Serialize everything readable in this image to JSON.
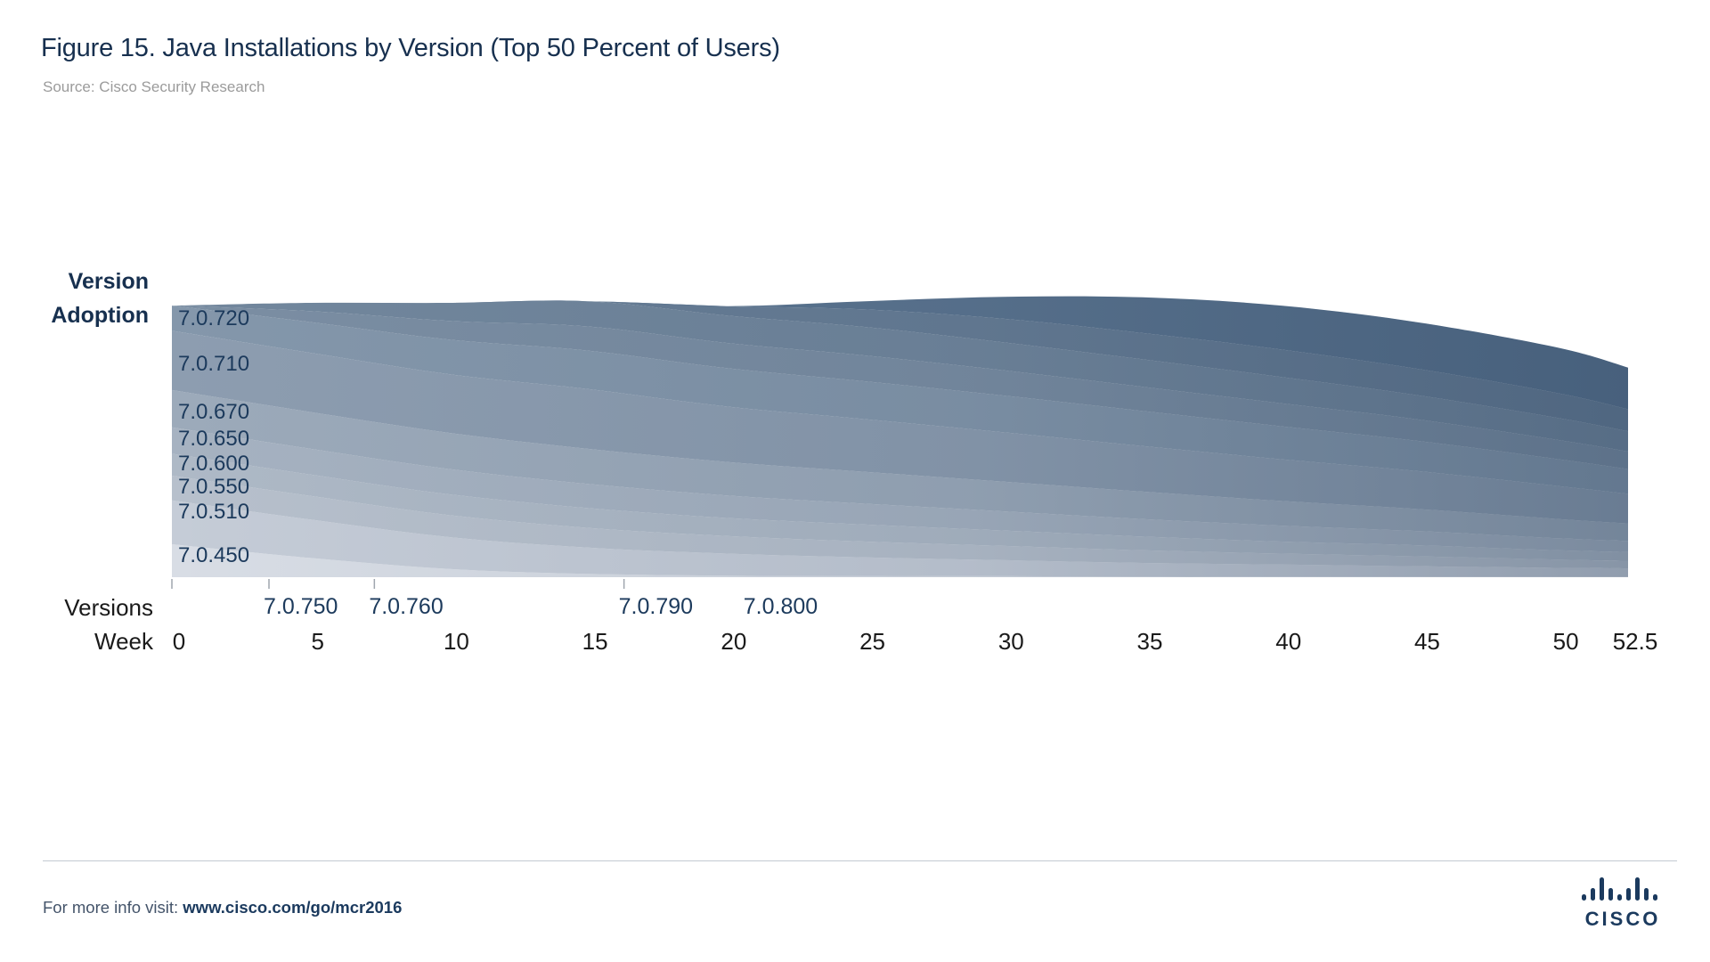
{
  "header": {
    "title": "Figure 15. Java Installations by Version (Top 50 Percent of Users)",
    "source": "Source: Cisco Security Research"
  },
  "y_axis_label": {
    "line1": "Version",
    "line2": "Adoption"
  },
  "axis_row_labels": {
    "versions": "Versions",
    "week": "Week"
  },
  "colors": {
    "title_navy": "#17304F",
    "label_navy": "#1C3A5C",
    "axis_text": "#1A1A1A",
    "tick_gray": "#9FA6AE",
    "shade_dark": "#17304F"
  },
  "chart_data": {
    "type": "area",
    "stacked": true,
    "title": "Java Installations by Version (Top 50 Percent of Users)",
    "xlabel": "Week",
    "ylabel": "Version Adoption",
    "x_range": [
      0,
      52.5
    ],
    "y_unit": "percent of all users (stack of top versions, ~50% total)",
    "grid": false,
    "legend_position": "labels-inside-left",
    "x": [
      0,
      5,
      10,
      15,
      20,
      25,
      30,
      35,
      40,
      45,
      50,
      52.5
    ],
    "x_ticks": [
      0,
      5,
      10,
      15,
      20,
      25,
      30,
      35,
      40,
      45,
      50,
      52.5
    ],
    "axis_ticks_weeks": [
      0,
      3.5,
      7.3,
      16.3
    ],
    "version_markers": [
      {
        "label": "7.0.750",
        "week": 3.5
      },
      {
        "label": "7.0.760",
        "week": 7.3
      },
      {
        "label": "7.0.790",
        "week": 16.3
      },
      {
        "label": "7.0.800",
        "week": 20.8
      }
    ],
    "series": [
      {
        "name": "7.0.450",
        "color": "#D8DDE5",
        "values": [
          6.0,
          3.5,
          1.5,
          0.6,
          0.3,
          0.2,
          0.2,
          0.1,
          0.1,
          0.1,
          0.1,
          0.1
        ]
      },
      {
        "name": "7.0.510",
        "color": "#C5CCD7",
        "values": [
          8.0,
          7.0,
          5.8,
          4.8,
          4.0,
          3.4,
          2.9,
          2.5,
          2.2,
          1.9,
          1.6,
          1.5
        ]
      },
      {
        "name": "7.0.550",
        "color": "#B7C0CC",
        "values": [
          4.5,
          4.3,
          4.0,
          3.6,
          3.2,
          2.9,
          2.6,
          2.3,
          2.0,
          1.8,
          1.5,
          1.4
        ]
      },
      {
        "name": "7.0.600",
        "color": "#AEB9C6",
        "values": [
          4.0,
          3.9,
          3.8,
          3.6,
          3.3,
          3.1,
          2.8,
          2.5,
          2.2,
          2.0,
          1.7,
          1.6
        ]
      },
      {
        "name": "7.0.650",
        "color": "#A6B2C1",
        "values": [
          4.8,
          4.7,
          4.6,
          4.4,
          4.1,
          3.8,
          3.5,
          3.2,
          2.9,
          2.6,
          2.2,
          2.0
        ]
      },
      {
        "name": "7.0.670",
        "color": "#9CAABA",
        "values": [
          6.8,
          6.7,
          6.6,
          6.4,
          6.1,
          5.8,
          5.4,
          5.0,
          4.5,
          4.0,
          3.5,
          3.2
        ]
      },
      {
        "name": "7.0.710",
        "color": "#8D9DB0",
        "values": [
          10.8,
          10.8,
          10.7,
          10.9,
          10.1,
          9.6,
          9.0,
          8.3,
          7.6,
          6.9,
          6.0,
          5.4
        ]
      },
      {
        "name": "7.0.720",
        "color": "#8497AB",
        "values": [
          4.6,
          5.6,
          6.3,
          7.0,
          7.0,
          6.9,
          6.7,
          6.4,
          6.0,
          5.5,
          4.9,
          4.5
        ]
      },
      {
        "name": "7.0.750",
        "color": "#7B8EA3",
        "values": [
          0,
          2.0,
          3.4,
          4.4,
          4.6,
          4.7,
          4.6,
          4.4,
          4.2,
          3.9,
          3.5,
          3.2
        ]
      },
      {
        "name": "7.0.760",
        "color": "#72879D",
        "values": [
          0,
          1.5,
          3.3,
          4.6,
          5.0,
          5.2,
          5.1,
          5.0,
          4.8,
          4.4,
          4.0,
          3.7
        ]
      },
      {
        "name": "7.0.790",
        "color": "#687E96",
        "values": [
          0,
          0,
          0,
          0,
          1.7,
          3.2,
          4.3,
          4.8,
          5.0,
          4.8,
          4.5,
          4.0
        ]
      },
      {
        "name": "7.0.800",
        "color": "#5C7590",
        "values": [
          0,
          0,
          0,
          0,
          0,
          1.5,
          4.0,
          6.5,
          8.0,
          8.5,
          8.3,
          7.6
        ]
      }
    ]
  },
  "footer": {
    "prefix": "For more info visit: ",
    "url": "www.cisco.com/go/mcr2016",
    "logo_text": "CISCO"
  }
}
